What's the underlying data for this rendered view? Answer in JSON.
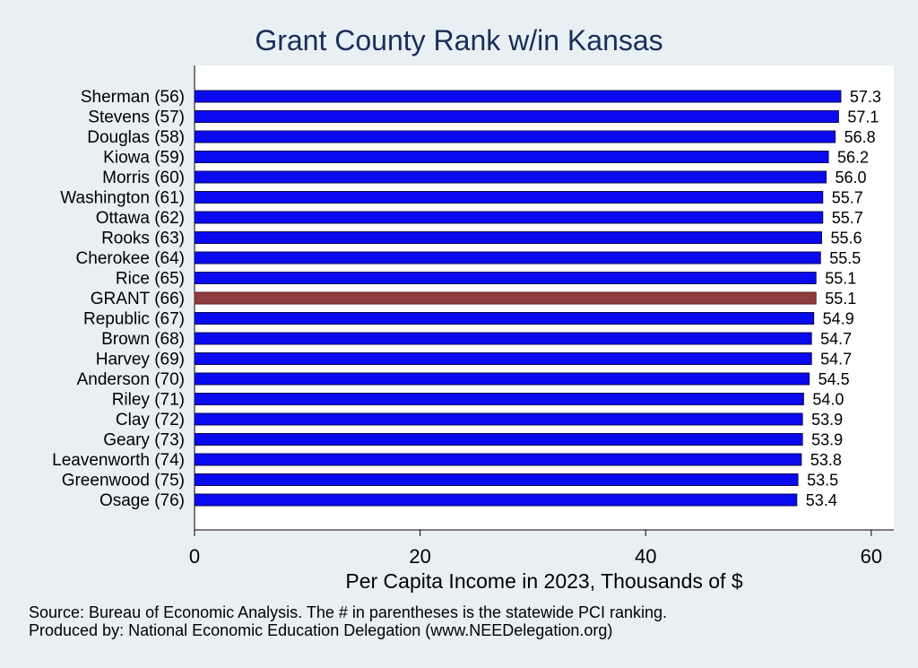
{
  "chart_data": {
    "type": "bar",
    "orientation": "horizontal",
    "title": "Grant County Rank w/in Kansas",
    "xlabel": "Per Capita Income in 2023, Thousands of $",
    "ylabel": "",
    "xlim": [
      0,
      62
    ],
    "xticks": [
      0,
      20,
      40,
      60
    ],
    "categories": [
      "Sherman (56)",
      "Stevens (57)",
      "Douglas (58)",
      "Kiowa (59)",
      "Morris (60)",
      "Washington (61)",
      "Ottawa (62)",
      "Rooks (63)",
      "Cherokee (64)",
      "Rice (65)",
      "GRANT (66)",
      "Republic (67)",
      "Brown (68)",
      "Harvey (69)",
      "Anderson (70)",
      "Riley (71)",
      "Clay (72)",
      "Geary (73)",
      "Leavenworth (74)",
      "Greenwood (75)",
      "Osage (76)"
    ],
    "values": [
      57.3,
      57.1,
      56.8,
      56.2,
      56.0,
      55.7,
      55.7,
      55.6,
      55.5,
      55.1,
      55.1,
      54.9,
      54.7,
      54.7,
      54.5,
      54.0,
      53.9,
      53.9,
      53.8,
      53.5,
      53.4
    ],
    "value_labels": [
      "57.3",
      "57.1",
      "56.8",
      "56.2",
      "56.0",
      "55.7",
      "55.7",
      "55.6",
      "55.5",
      "55.1",
      "55.1",
      "54.9",
      "54.7",
      "54.7",
      "54.5",
      "54.0",
      "53.9",
      "53.9",
      "53.8",
      "53.5",
      "53.4"
    ],
    "highlight_category": "GRANT (66)",
    "colors": {
      "bar": "#0a0af0",
      "bar_edge": "#0a0a50",
      "highlight": "#903c3c",
      "highlight_edge": "#5a2020",
      "title": "#1a2e5a",
      "plot_bg": "#ffffff",
      "page_bg": "#e9f0f3"
    },
    "grid": false
  },
  "notes": {
    "source": "Source: Bureau of Economic Analysis. The # in parentheses is the statewide PCI ranking.",
    "producer": "Produced by: National Economic Education Delegation (www.NEEDelegation.org)"
  }
}
